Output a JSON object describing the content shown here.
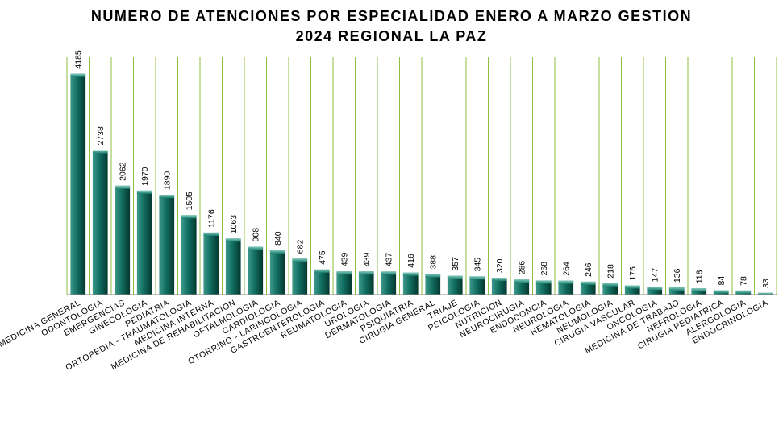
{
  "chart_data": {
    "type": "bar",
    "title_lines": [
      "NUMERO DE ATENCIONES POR ESPECIALIDAD ENERO A MARZO GESTION",
      "2024 REGIONAL LA PAZ"
    ],
    "categories": [
      "MEDICINA GENERAL",
      "ODONTOLOGIA",
      "EMERGENCIAS",
      "GINECOLOGIA",
      "PEDIATRIA",
      "ORTOPEDIA - TRAUMATOLOGIA",
      "MEDICINA INTERNA",
      "MEDICINA DE REHABILITACION",
      "OFTALMOLOGIA",
      "CARDIOLOGIA",
      "OTORRINO - LARINGOLOGIA",
      "GASTROENTEROLOGIA",
      "REUMATOLOGIA",
      "UROLOGIA",
      "DERMATOLOGIA",
      "PSIQUIATRIA",
      "CIRUGIA GENERAL",
      "TRIAJE",
      "PSICOLOGIA",
      "NUTRICION",
      "NEUROCIRUGIA",
      "ENDODONCIA",
      "NEUROLOGIA",
      "HEMATOLOGIA",
      "NEUMOLOGIA",
      "CIRUGIA VASCULAR",
      "ONCOLOGIA",
      "MEDICINA DE TRABAJO",
      "NEFROLOGIA",
      "CIRUGIA PEDIATRICA",
      "ALERGOLOGIA",
      "ENDOCRINOLOGIA"
    ],
    "values": [
      4185,
      2738,
      2062,
      1970,
      1890,
      1505,
      1176,
      1063,
      908,
      840,
      682,
      475,
      439,
      439,
      437,
      416,
      388,
      357,
      345,
      320,
      286,
      268,
      264,
      246,
      218,
      175,
      147,
      136,
      118,
      84,
      78,
      33
    ],
    "data_labels": [
      "4185",
      "2738",
      "2062",
      "1970",
      "1890",
      "1505",
      "1176",
      "1063",
      "908",
      "840",
      "682",
      "475",
      "439",
      "439",
      "437",
      "416",
      "388",
      "357",
      "345",
      "320",
      "286",
      "268",
      "264",
      "246",
      "218",
      "175",
      "147",
      "136",
      "118",
      "84",
      "78",
      "33"
    ],
    "xlabel": "",
    "ylabel": "",
    "ylim": [
      0,
      4500
    ],
    "grid": "vertical",
    "legend": "none",
    "colors": {
      "bar_top": "#3d9a8b",
      "bar_mid": "#116e60",
      "bar_dark": "#04382f",
      "grid": "#8cbf3f",
      "axis": "#888888"
    }
  }
}
